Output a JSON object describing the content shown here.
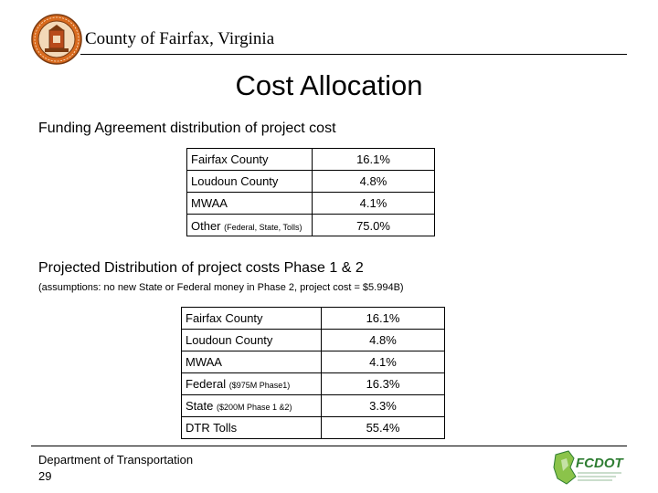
{
  "header": {
    "county_title": "County of Fairfax, Virginia",
    "seal_icon": "county-seal-icon"
  },
  "slide_title": "Cost Allocation",
  "section1": {
    "heading": "Funding Agreement distribution of project cost",
    "rows": [
      {
        "label": "Fairfax County",
        "note": "",
        "value": "16.1%"
      },
      {
        "label": "Loudoun County",
        "note": "",
        "value": "4.8%"
      },
      {
        "label": "MWAA",
        "note": "",
        "value": "4.1%"
      },
      {
        "label": "Other",
        "note": "(Federal, State, Tolls)",
        "value": "75.0%"
      }
    ]
  },
  "section2": {
    "heading": "Projected Distribution of project costs Phase 1 & 2",
    "assumptions": "(assumptions: no new State or Federal money in Phase 2, project cost = $5.994B)",
    "rows": [
      {
        "label": "Fairfax County",
        "note": "",
        "value": "16.1%"
      },
      {
        "label": "Loudoun County",
        "note": "",
        "value": "4.8%"
      },
      {
        "label": "MWAA",
        "note": "",
        "value": "4.1%"
      },
      {
        "label": "Federal",
        "note": "($975M Phase1)",
        "value": "16.3%"
      },
      {
        "label": "State",
        "note": "($200M Phase 1 &2)",
        "value": "3.3%"
      },
      {
        "label": "DTR Tolls",
        "note": "",
        "value": "55.4%"
      }
    ]
  },
  "footer": {
    "department": "Department of Transportation",
    "page_number": "29",
    "logo_text": "FCDOT"
  },
  "colors": {
    "seal_orange": "#d86a1e",
    "logo_green": "#2e7d32"
  }
}
